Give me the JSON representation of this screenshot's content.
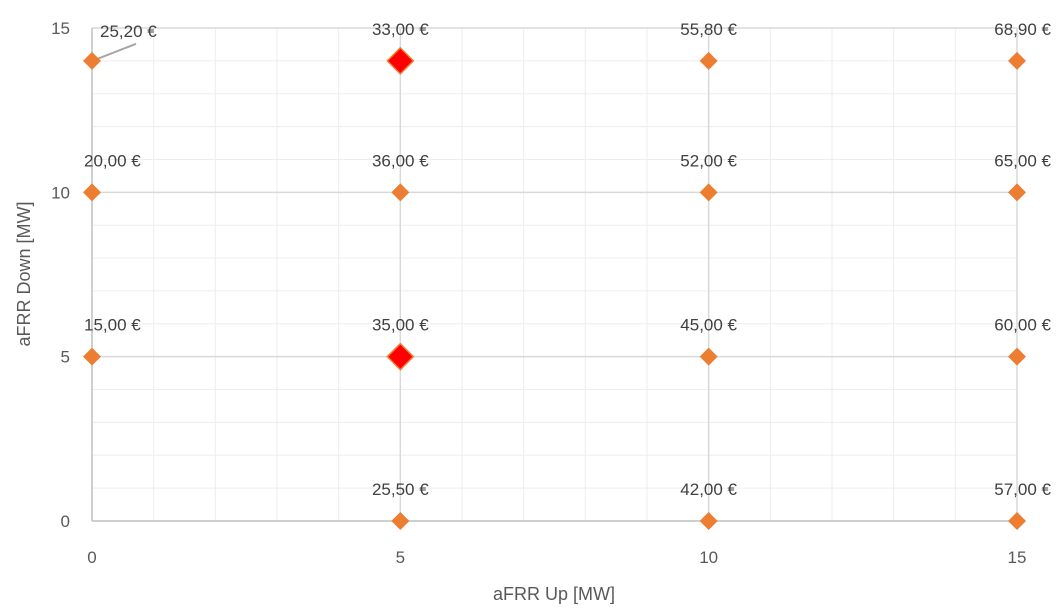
{
  "chart_data": {
    "type": "scatter",
    "xlabel": "aFRR Up [MW]",
    "ylabel": "aFRR Down [MW]",
    "xlim": [
      0,
      15
    ],
    "ylim": [
      0,
      15
    ],
    "x_ticks": [
      "0",
      "5",
      "10",
      "15"
    ],
    "y_ticks": [
      "0",
      "5",
      "10",
      "15"
    ],
    "major_grid": true,
    "minor_grid": true,
    "colors": {
      "point": "#ED7D31",
      "highlight": "#FF0000",
      "grid_major": "#D9D9D9",
      "grid_minor": "#EDEDED",
      "axis": "#BFBFBF",
      "text": "#595959"
    },
    "points": [
      {
        "x": 0,
        "y": 14,
        "label": "25,20 €",
        "highlight": false
      },
      {
        "x": 5,
        "y": 14,
        "label": "33,00 €",
        "highlight": true
      },
      {
        "x": 10,
        "y": 14,
        "label": "55,80 €",
        "highlight": false
      },
      {
        "x": 15,
        "y": 14,
        "label": "68,90 €",
        "highlight": false
      },
      {
        "x": 0,
        "y": 10,
        "label": "20,00 €",
        "highlight": false
      },
      {
        "x": 5,
        "y": 10,
        "label": "36,00 €",
        "highlight": false
      },
      {
        "x": 10,
        "y": 10,
        "label": "52,00 €",
        "highlight": false
      },
      {
        "x": 15,
        "y": 10,
        "label": "65,00 €",
        "highlight": false
      },
      {
        "x": 0,
        "y": 5,
        "label": "15,00 €",
        "highlight": false
      },
      {
        "x": 5,
        "y": 5,
        "label": "35,00 €",
        "highlight": true
      },
      {
        "x": 10,
        "y": 5,
        "label": "45,00 €",
        "highlight": false
      },
      {
        "x": 15,
        "y": 5,
        "label": "60,00 €",
        "highlight": false
      },
      {
        "x": 5,
        "y": 0,
        "label": "25,50 €",
        "highlight": false
      },
      {
        "x": 10,
        "y": 0,
        "label": "42,00 €",
        "highlight": false
      },
      {
        "x": 15,
        "y": 0,
        "label": "57,00 €",
        "highlight": false
      }
    ]
  }
}
